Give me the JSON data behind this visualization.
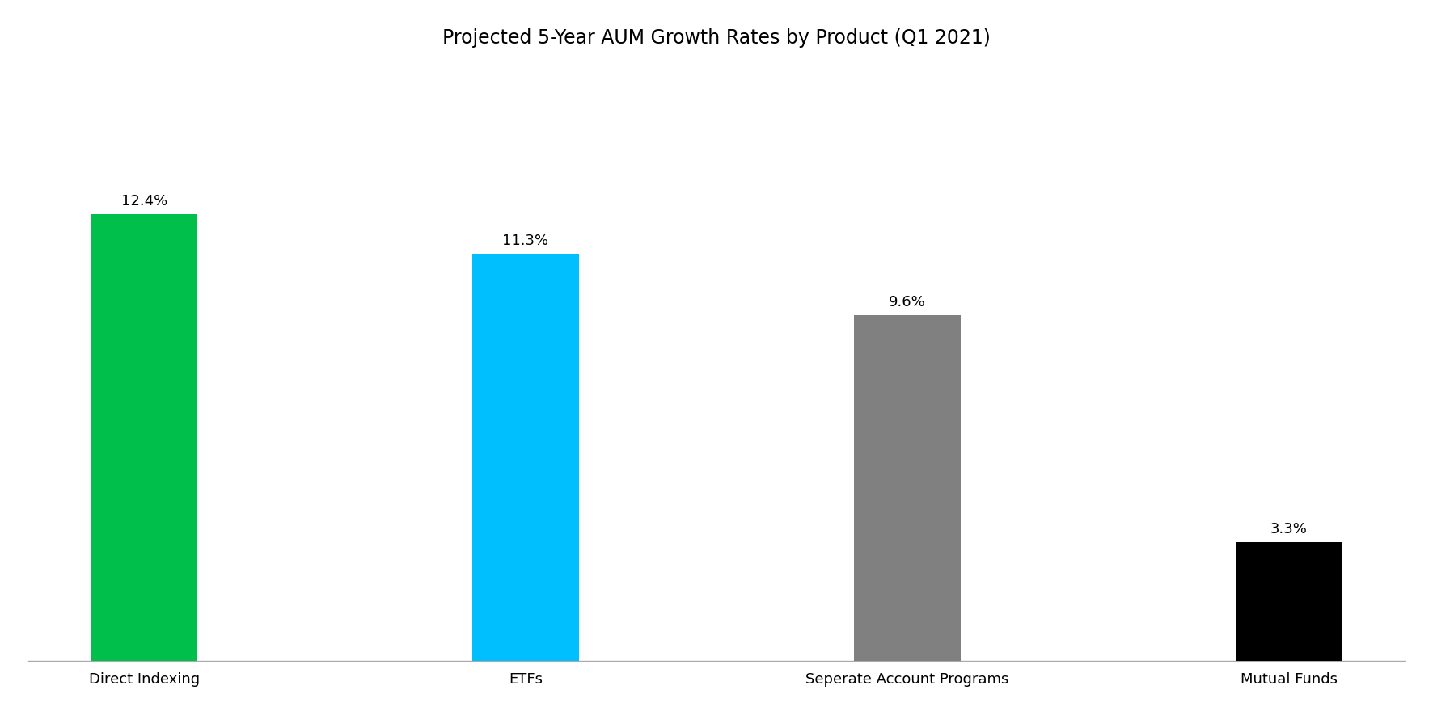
{
  "title": "Projected 5-Year AUM Growth Rates by Product (Q1 2021)",
  "categories": [
    "Direct Indexing",
    "ETFs",
    "Seperate Account Programs",
    "Mutual Funds"
  ],
  "values": [
    12.4,
    11.3,
    9.6,
    3.3
  ],
  "bar_colors": [
    "#00C04B",
    "#00BFFF",
    "#808080",
    "#000000"
  ],
  "labels": [
    "12.4%",
    "11.3%",
    "9.6%",
    "3.3%"
  ],
  "ylim": [
    0,
    16.5
  ],
  "background_color": "#ffffff",
  "title_fontsize": 17,
  "label_fontsize": 13,
  "tick_fontsize": 13,
  "bar_width": 0.28
}
